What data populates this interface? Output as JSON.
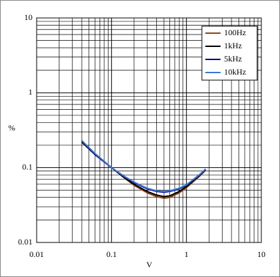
{
  "chart_data": {
    "type": "line",
    "x_label": "V",
    "y_label": "%",
    "x": [
      0.04,
      0.06,
      0.1,
      0.15,
      0.2,
      0.3,
      0.4,
      0.5,
      0.6,
      0.8,
      1,
      1.5,
      1.8
    ],
    "series": [
      {
        "name": "100Hz",
        "color": "#8b4513",
        "values": [
          0.22,
          0.15,
          0.1,
          0.072,
          0.058,
          0.046,
          0.041,
          0.039,
          0.04,
          0.046,
          0.054,
          0.077,
          0.092
        ]
      },
      {
        "name": "1kHz",
        "color": "#000000",
        "values": [
          0.22,
          0.15,
          0.1,
          0.073,
          0.06,
          0.048,
          0.043,
          0.041,
          0.042,
          0.048,
          0.056,
          0.079,
          0.094
        ]
      },
      {
        "name": "5kHz",
        "color": "#00008b",
        "values": [
          0.23,
          0.15,
          0.1,
          0.075,
          0.063,
          0.052,
          0.048,
          0.047,
          0.048,
          0.052,
          0.058,
          0.08,
          0.095
        ]
      },
      {
        "name": "10kHz",
        "color": "#3a75d8",
        "values": [
          0.23,
          0.155,
          0.1,
          0.076,
          0.064,
          0.053,
          0.049,
          0.048,
          0.049,
          0.053,
          0.059,
          0.081,
          0.096
        ]
      }
    ],
    "xlim": [
      0.01,
      10
    ],
    "ylim": [
      0.01,
      10
    ],
    "xticks": [
      0.01,
      0.1,
      1,
      10
    ],
    "yticks": [
      0.01,
      0.1,
      1,
      10
    ],
    "x_log": true,
    "y_log": true,
    "grid": true,
    "minor_grid": true,
    "legend": "upper right"
  }
}
